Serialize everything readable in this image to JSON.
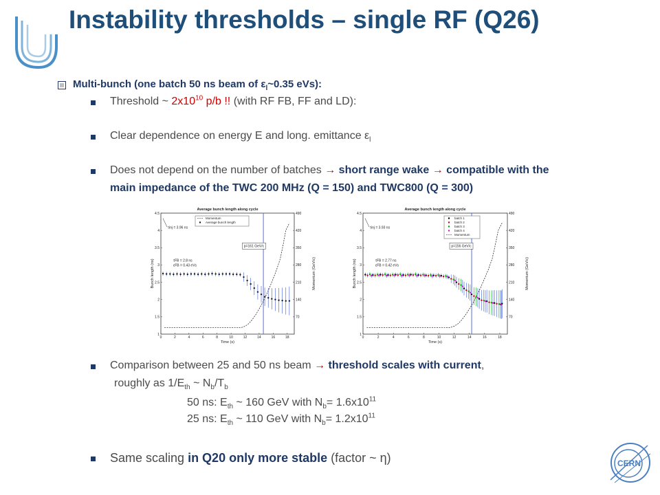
{
  "slide": {
    "title": "Instability thresholds – single RF (Q26)",
    "heading": {
      "part1": "Multi-bunch  (one batch 50 ns beam of ε",
      "sub": "l",
      "part2": "~0.35 eVs):"
    },
    "bullet1": {
      "prefix": "Threshold ~ ",
      "red_pre": "2x10",
      "red_sup": "10",
      "red_post": " p/b !!",
      "suffix": " (with RF FB, FF and LD):"
    },
    "bullet2": {
      "text": "Clear dependence  on energy E and long. emittance ε",
      "sub": "l"
    },
    "bullet3": {
      "pre": "Does not depend on the number of batches ",
      "arrow": "→",
      "bold1": " short range wake ",
      "bold2": " compatible with the",
      "line2": "main impedance of the TWC 200 MHz (Q = 150) and TWC800 (Q = 300)"
    },
    "bullet4": {
      "pre": "Comparison between 25 and 50 ns beam ",
      "arrow": "→",
      "bold": " threshold scales with current",
      "post": ","
    },
    "scaling": {
      "l1_pre": "roughly as 1/E",
      "l1_sub1": "th",
      "l1_mid": " ~ N",
      "l1_sub2": "b",
      "l1_mid2": "/T",
      "l1_sub3": "b",
      "l2_pre": "50 ns: E",
      "l2_sub1": "th",
      "l2_mid": " ~ 160 GeV with N",
      "l2_sub2": "b",
      "l2_mid2": "= 1.6x10",
      "l2_sup": "11",
      "l3_pre": "25 ns: E",
      "l3_sub1": "th",
      "l3_mid": " ~ 110 GeV with N",
      "l3_sub2": "b",
      "l3_mid2": "= 1.2x10",
      "l3_sup": "11"
    },
    "bullet5": {
      "pre": "Same scaling ",
      "bold": "in Q20 only more stable",
      "post": " (factor ~ η)"
    },
    "cern_label": "CERN"
  },
  "chart_data": [
    {
      "type": "scatter",
      "title": "Average bunch length along cycle",
      "xlabel": "Time (s)",
      "ylabel": "Bunch length (ns)",
      "y2label": "Momentum (GeV/c)",
      "xlim": [
        0,
        19
      ],
      "ylim": [
        1,
        4.5
      ],
      "y2lim": [
        0,
        490
      ],
      "x_ticks": [
        "0",
        "2",
        "4",
        "6",
        "8",
        "10",
        "12",
        "14",
        "16",
        "18"
      ],
      "y_ticks": [
        "1",
        "1.5",
        "2",
        "2.5",
        "3",
        "3.5",
        "4",
        "4.5"
      ],
      "y2_ticks": [
        "70",
        "140",
        "210",
        "280",
        "350",
        "420",
        "490"
      ],
      "legend": [
        "Momentum",
        "Average bunch length"
      ],
      "annotations": [
        "τinj = 3.96 ns",
        "τFB = 2.8 ns",
        "εFB = 0.43 eVs",
        "p=161 GeV/c"
      ],
      "marker_time": 14.6,
      "series": [
        {
          "name": "Average bunch length",
          "x": [
            0.3,
            0.8,
            1.3,
            1.8,
            2.3,
            2.8,
            3.3,
            3.8,
            4.3,
            4.8,
            5.3,
            5.8,
            6.3,
            6.8,
            7.3,
            7.8,
            8.3,
            8.8,
            9.3,
            9.8,
            10.3,
            10.8,
            11.3,
            11.8,
            12.3,
            12.8,
            13.3,
            13.8,
            14.3,
            14.8,
            15.3,
            15.8,
            16.3,
            16.8,
            17.3,
            17.8,
            18.3
          ],
          "values": [
            2.75,
            2.74,
            2.74,
            2.73,
            2.74,
            2.73,
            2.74,
            2.73,
            2.74,
            2.74,
            2.73,
            2.74,
            2.73,
            2.74,
            2.75,
            2.74,
            2.73,
            2.74,
            2.74,
            2.74,
            2.73,
            2.73,
            2.72,
            2.65,
            2.55,
            2.45,
            2.33,
            2.22,
            2.15,
            2.08,
            2.05,
            2.02,
            2.0,
            1.98,
            1.97,
            1.96,
            1.96
          ]
        },
        {
          "name": "Momentum",
          "x": [
            0.5,
            11.0,
            11.5,
            12.0,
            12.5,
            13.0,
            13.5,
            14.0,
            14.5,
            15.0,
            15.5,
            16.0,
            16.5,
            17.0,
            17.4,
            17.8,
            18.3
          ],
          "values": [
            26,
            26,
            27,
            32,
            42,
            58,
            78,
            102,
            128,
            158,
            190,
            225,
            262,
            305,
            360,
            420,
            450
          ]
        }
      ]
    },
    {
      "type": "scatter",
      "title": "Average bunch length along cycle",
      "xlabel": "Time (s)",
      "ylabel": "Bunch length (ns)",
      "y2label": "Momentum (GeV/c)",
      "xlim": [
        0,
        19
      ],
      "ylim": [
        1,
        4.5
      ],
      "y2lim": [
        0,
        490
      ],
      "x_ticks": [
        "0",
        "2",
        "4",
        "6",
        "8",
        "10",
        "12",
        "14",
        "16",
        "18"
      ],
      "y_ticks": [
        "1",
        "1.5",
        "2",
        "2.5",
        "3",
        "3.5",
        "4",
        "4.5"
      ],
      "y2_ticks": [
        "70",
        "140",
        "210",
        "280",
        "350",
        "420",
        "490"
      ],
      "legend": [
        "batch 1",
        "batch 2",
        "batch 3",
        "batch 4",
        "Momentum"
      ],
      "annotations": [
        "τinj = 3.93 ns",
        "τFB = 2.77 ns",
        "εFB = 0.42 eVs",
        "p=156 GeV/c"
      ],
      "marker_time": 14.3,
      "series": [
        {
          "name": "batch 1",
          "x": [
            0.3,
            1.3,
            2.3,
            3.3,
            4.3,
            5.3,
            6.3,
            7.3,
            8.3,
            9.3,
            10.3,
            11.3,
            12.3,
            13.3,
            14.3,
            15.3,
            16.3,
            17.3,
            18.3
          ],
          "values": [
            2.72,
            2.71,
            2.72,
            2.71,
            2.72,
            2.71,
            2.72,
            2.71,
            2.7,
            2.7,
            2.69,
            2.64,
            2.5,
            2.32,
            2.15,
            2.02,
            1.95,
            1.9,
            1.88
          ]
        },
        {
          "name": "batch 2",
          "x": [
            0.6,
            1.6,
            2.6,
            3.6,
            4.6,
            5.6,
            6.6,
            7.6,
            8.6,
            9.6,
            10.6,
            11.6,
            12.6,
            13.6,
            14.6,
            15.6,
            16.6,
            17.6,
            18.1
          ],
          "values": [
            2.7,
            2.7,
            2.71,
            2.7,
            2.71,
            2.7,
            2.71,
            2.7,
            2.69,
            2.69,
            2.67,
            2.6,
            2.45,
            2.27,
            2.1,
            1.98,
            1.92,
            1.88,
            1.86
          ]
        },
        {
          "name": "batch 3",
          "x": [
            0.9,
            1.9,
            2.9,
            3.9,
            4.9,
            5.9,
            6.9,
            7.9,
            8.9,
            9.9,
            10.9,
            11.9,
            12.9,
            13.9,
            14.9,
            15.9,
            16.9,
            17.9
          ],
          "values": [
            2.73,
            2.72,
            2.73,
            2.72,
            2.73,
            2.72,
            2.73,
            2.72,
            2.71,
            2.71,
            2.68,
            2.58,
            2.42,
            2.24,
            2.08,
            1.97,
            1.91,
            1.87
          ]
        },
        {
          "name": "batch 4",
          "x": [
            1.1,
            2.1,
            3.1,
            4.1,
            5.1,
            6.1,
            7.1,
            8.1,
            9.1,
            10.1,
            11.1,
            12.1,
            13.1,
            14.1,
            15.1,
            16.1,
            17.1,
            18.2
          ],
          "values": [
            2.69,
            2.7,
            2.69,
            2.7,
            2.69,
            2.7,
            2.69,
            2.7,
            2.68,
            2.68,
            2.66,
            2.55,
            2.38,
            2.2,
            2.05,
            1.95,
            1.9,
            1.85
          ]
        },
        {
          "name": "Momentum",
          "x": [
            0.5,
            11.0,
            11.5,
            12.0,
            12.5,
            13.0,
            13.5,
            14.0,
            14.5,
            15.0,
            15.5,
            16.0,
            16.5,
            17.0,
            17.4,
            17.8,
            18.3
          ],
          "values": [
            26,
            26,
            27,
            32,
            42,
            58,
            78,
            102,
            128,
            158,
            190,
            225,
            262,
            305,
            360,
            420,
            450
          ]
        }
      ]
    }
  ],
  "colors": {
    "title": "#1f4e79",
    "accent": "#1f3864",
    "highlight": "#cc0000",
    "bunch_points": "#1a1a1a",
    "error_bars": "#3b5bdb",
    "marker_line": "#4a5fd0",
    "batch_colors": [
      "#000000",
      "#cc0000",
      "#00a000",
      "#e000e0"
    ]
  }
}
